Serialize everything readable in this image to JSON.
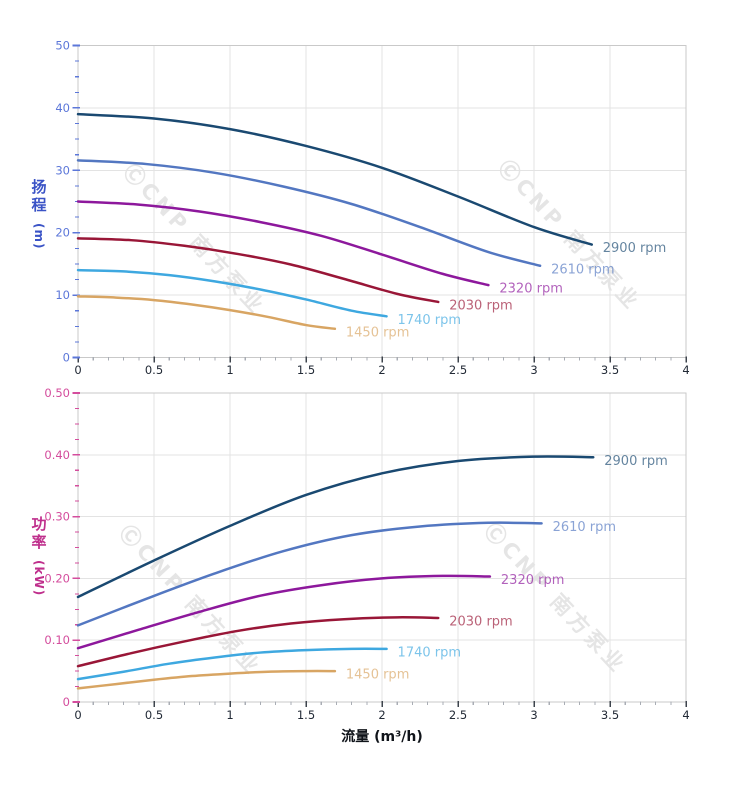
{
  "page": {
    "background": "#ffffff"
  },
  "watermark": {
    "text": "ⒸCNP 南方泵业",
    "color": "rgba(158,158,158,0.27)"
  },
  "x_axis_title": "流量 (m³/h)",
  "theme": {
    "grid": "#e3e3e3",
    "plot_border": "#c9c9c9",
    "x_tick_major": "#3e444d",
    "x_tick_minor": "#a9adb4",
    "x_tick_label": "#222a36"
  },
  "chart_data": [
    {
      "type": "line",
      "title": "",
      "ylabel": "扬程",
      "ylabel_unit": "(m)",
      "ylabel_color": "#3a53c6",
      "ytick_color": "#5c77d9",
      "xlabel": "流量 (m³/h)",
      "x": {
        "min": 0,
        "max": 4,
        "major": 0.5,
        "minor": 0.1,
        "tick_labels": [
          "0",
          "0.5",
          "1",
          "1.5",
          "2",
          "2.5",
          "3",
          "3.5",
          "4"
        ]
      },
      "y": {
        "min": 0,
        "max": 50,
        "major": 10,
        "minor": 2.5,
        "tick_labels": [
          "0",
          "10",
          "20",
          "30",
          "40",
          "50"
        ]
      },
      "grid": true,
      "legend_position": "end-of-line",
      "series": [
        {
          "name": "2900 rpm",
          "color": "#1a4971",
          "points": [
            [
              0,
              39
            ],
            [
              0.5,
              38.3
            ],
            [
              1,
              36.6
            ],
            [
              1.5,
              33.9
            ],
            [
              2,
              30.4
            ],
            [
              2.5,
              25.8
            ],
            [
              3,
              20.9
            ],
            [
              3.38,
              18.1
            ]
          ]
        },
        {
          "name": "2610 rpm",
          "color": "#5377c1",
          "points": [
            [
              0,
              31.6
            ],
            [
              0.45,
              31.0
            ],
            [
              0.9,
              29.6
            ],
            [
              1.35,
              27.4
            ],
            [
              1.8,
              24.6
            ],
            [
              2.25,
              20.9
            ],
            [
              2.7,
              16.9
            ],
            [
              3.04,
              14.7
            ]
          ]
        },
        {
          "name": "2320 rpm",
          "color": "#8d189c",
          "points": [
            [
              0,
              25.0
            ],
            [
              0.4,
              24.5
            ],
            [
              0.8,
              23.4
            ],
            [
              1.2,
              21.7
            ],
            [
              1.6,
              19.5
            ],
            [
              2.0,
              16.5
            ],
            [
              2.4,
              13.4
            ],
            [
              2.7,
              11.6
            ]
          ]
        },
        {
          "name": "2030 rpm",
          "color": "#991637",
          "points": [
            [
              0,
              19.1
            ],
            [
              0.35,
              18.8
            ],
            [
              0.7,
              17.9
            ],
            [
              1.05,
              16.6
            ],
            [
              1.4,
              14.9
            ],
            [
              1.75,
              12.6
            ],
            [
              2.1,
              10.2
            ],
            [
              2.37,
              8.9
            ]
          ]
        },
        {
          "name": "1740 rpm",
          "color": "#3ea8e0",
          "points": [
            [
              0,
              14.0
            ],
            [
              0.3,
              13.8
            ],
            [
              0.6,
              13.2
            ],
            [
              0.9,
              12.2
            ],
            [
              1.2,
              10.9
            ],
            [
              1.5,
              9.3
            ],
            [
              1.8,
              7.5
            ],
            [
              2.03,
              6.6
            ]
          ]
        },
        {
          "name": "1450 rpm",
          "color": "#d8a563",
          "points": [
            [
              0,
              9.8
            ],
            [
              0.25,
              9.6
            ],
            [
              0.5,
              9.2
            ],
            [
              0.75,
              8.5
            ],
            [
              1.0,
              7.6
            ],
            [
              1.25,
              6.5
            ],
            [
              1.5,
              5.2
            ],
            [
              1.69,
              4.6
            ]
          ]
        }
      ]
    },
    {
      "type": "line",
      "title": "",
      "ylabel": "功率",
      "ylabel_unit": "(kW)",
      "ylabel_color": "#bf2f8c",
      "ytick_color": "#d44d9d",
      "xlabel": "流量 (m³/h)",
      "x": {
        "min": 0,
        "max": 4,
        "major": 0.5,
        "minor": 0.1,
        "tick_labels": [
          "0",
          "0.5",
          "1",
          "1.5",
          "2",
          "2.5",
          "3",
          "3.5",
          "4"
        ]
      },
      "y": {
        "min": 0,
        "max": 0.5,
        "major": 0.1,
        "minor": 0.025,
        "tick_labels": [
          "0",
          "0.10",
          "0.20",
          "0.30",
          "0.40",
          "0.50"
        ]
      },
      "grid": true,
      "legend_position": "end-of-line",
      "series": [
        {
          "name": "2900 rpm",
          "color": "#1a4971",
          "points": [
            [
              0,
              0.17
            ],
            [
              0.5,
              0.229
            ],
            [
              1,
              0.285
            ],
            [
              1.5,
              0.335
            ],
            [
              2,
              0.37
            ],
            [
              2.5,
              0.39
            ],
            [
              3,
              0.397
            ],
            [
              3.39,
              0.396
            ]
          ]
        },
        {
          "name": "2610 rpm",
          "color": "#5377c1",
          "points": [
            [
              0,
              0.124
            ],
            [
              0.45,
              0.167
            ],
            [
              0.9,
              0.208
            ],
            [
              1.35,
              0.244
            ],
            [
              1.8,
              0.27
            ],
            [
              2.25,
              0.284
            ],
            [
              2.7,
              0.29
            ],
            [
              3.05,
              0.289
            ]
          ]
        },
        {
          "name": "2320 rpm",
          "color": "#8d189c",
          "points": [
            [
              0,
              0.087
            ],
            [
              0.4,
              0.117
            ],
            [
              0.8,
              0.146
            ],
            [
              1.2,
              0.172
            ],
            [
              1.6,
              0.189
            ],
            [
              2.0,
              0.2
            ],
            [
              2.4,
              0.204
            ],
            [
              2.71,
              0.203
            ]
          ]
        },
        {
          "name": "2030 rpm",
          "color": "#991637",
          "points": [
            [
              0,
              0.058
            ],
            [
              0.35,
              0.079
            ],
            [
              0.7,
              0.098
            ],
            [
              1.05,
              0.115
            ],
            [
              1.4,
              0.127
            ],
            [
              1.75,
              0.134
            ],
            [
              2.1,
              0.137
            ],
            [
              2.37,
              0.136
            ]
          ]
        },
        {
          "name": "1740 rpm",
          "color": "#3ea8e0",
          "points": [
            [
              0,
              0.037
            ],
            [
              0.3,
              0.049
            ],
            [
              0.6,
              0.062
            ],
            [
              0.9,
              0.072
            ],
            [
              1.2,
              0.08
            ],
            [
              1.5,
              0.084
            ],
            [
              1.8,
              0.086
            ],
            [
              2.03,
              0.086
            ]
          ]
        },
        {
          "name": "1450 rpm",
          "color": "#d8a563",
          "points": [
            [
              0,
              0.022
            ],
            [
              0.25,
              0.029
            ],
            [
              0.5,
              0.036
            ],
            [
              0.75,
              0.042
            ],
            [
              1.0,
              0.046
            ],
            [
              1.25,
              0.049
            ],
            [
              1.5,
              0.05
            ],
            [
              1.69,
              0.05
            ]
          ]
        }
      ]
    }
  ]
}
